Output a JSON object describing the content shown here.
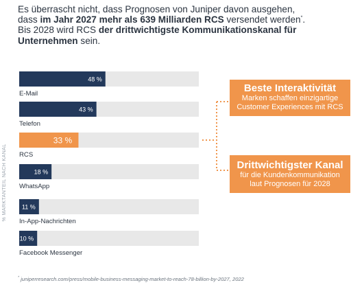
{
  "intro": {
    "line1": "Es überrascht nicht, dass Prognosen von Juniper davon ausgehen,",
    "line2_pre": "dass ",
    "line2_bold": "im Jahr 2027 mehr als 639 Milliarden RCS",
    "line2_post": " versendet werden",
    "line2_sup": "*",
    "line2_end": ".",
    "line3_pre": "Bis 2028 wird RCS ",
    "line3_bold": "der drittwichtigste Kommunikationskanal für",
    "line4_bold": "Unternehmen",
    "line4_post": " sein."
  },
  "chart_data": {
    "type": "bar",
    "orientation": "horizontal",
    "ylabel": "% MARKTANTEIL NACH KANAL",
    "xlim": [
      0,
      100
    ],
    "categories": [
      "E-Mail",
      "Telefon",
      "RCS",
      "WhatsApp",
      "In-App-Nachrichten",
      "Facebook Messenger"
    ],
    "values": [
      48,
      43,
      33,
      18,
      11,
      10
    ],
    "value_labels": [
      "48 %",
      "43 %",
      "33 %",
      "18 %",
      "11 %",
      "10 %"
    ],
    "highlight": "RCS",
    "colors": {
      "bar": "#23395b",
      "highlight": "#f0954b",
      "track": "#e8e8e8",
      "connector": "#f0954b"
    },
    "grid": false
  },
  "callouts": [
    {
      "title": "Beste Interaktivität",
      "text1": "Marken schaffen einzigartige",
      "text2": "Customer Experiences mit RCS"
    },
    {
      "title": "Drittwichtigster Kanal",
      "text1": "für die Kundenkommunikation",
      "text2": "laut Prognosen für 2028"
    }
  ],
  "footnote": {
    "sup": "*",
    "text": " juniperresearch.com/press/mobile-business-messaging-market-to-reach-78-billion-by-2027, 2022"
  }
}
